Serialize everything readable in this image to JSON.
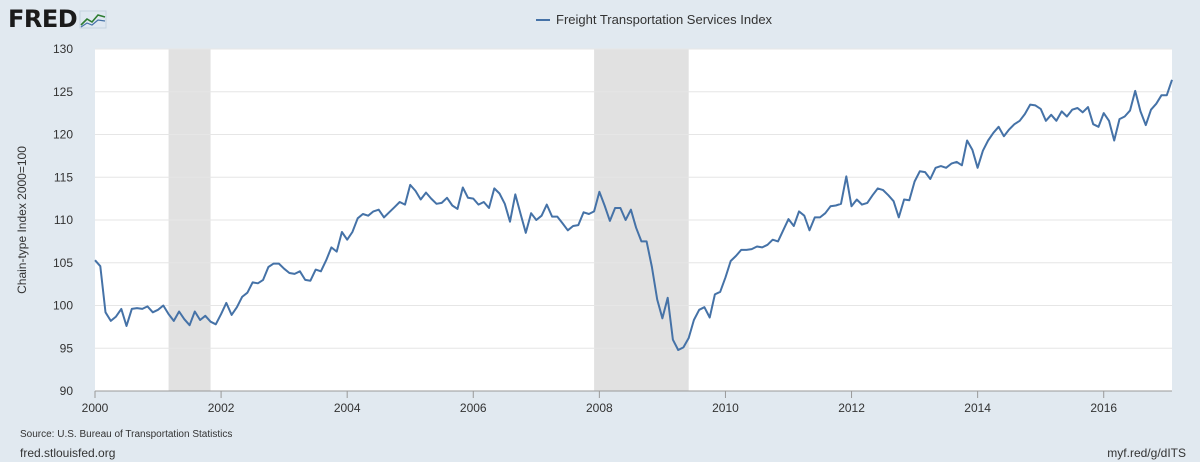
{
  "header": {
    "logo_text": "FRED",
    "logo_icon": "chart-line-icon"
  },
  "footer": {
    "source": "Source: U.S. Bureau of Transportation Statistics",
    "site": "fred.stlouisfed.org",
    "short_url": "myf.red/g/dITS"
  },
  "colors": {
    "line": "#4572a7",
    "recession": "#e1e1e1",
    "plot_bg": "#ffffff",
    "page_bg": "#e1e9f0",
    "grid": "#e6e6e6"
  },
  "chart_data": {
    "type": "line",
    "title": "",
    "ylabel": "Chain-type Index 2000=100",
    "xlabel": "",
    "ylim": [
      90,
      130
    ],
    "xlim": [
      2000.0,
      2017.083
    ],
    "yticks": [
      90,
      95,
      100,
      105,
      110,
      115,
      120,
      125,
      130
    ],
    "xticks": [
      2000,
      2002,
      2004,
      2006,
      2008,
      2010,
      2012,
      2014,
      2016
    ],
    "grid": true,
    "legend_position": "top-center",
    "recessions": [
      [
        2001.167,
        2001.833
      ],
      [
        2007.917,
        2009.417
      ]
    ],
    "series": [
      {
        "name": "Freight Transportation Services Index",
        "frequency": "monthly",
        "start": "2000-01",
        "values": [
          105.3,
          104.6,
          99.2,
          98.2,
          98.7,
          99.6,
          97.6,
          99.6,
          99.7,
          99.6,
          99.9,
          99.2,
          99.5,
          100.0,
          99.0,
          98.2,
          99.3,
          98.4,
          97.7,
          99.3,
          98.3,
          98.8,
          98.1,
          97.8,
          99.0,
          100.3,
          98.9,
          99.8,
          101.0,
          101.5,
          102.7,
          102.6,
          103.0,
          104.5,
          104.9,
          104.9,
          104.3,
          103.8,
          103.7,
          104.0,
          103.0,
          102.9,
          104.2,
          104.0,
          105.3,
          106.8,
          106.3,
          108.6,
          107.7,
          108.6,
          110.2,
          110.7,
          110.5,
          111.0,
          111.2,
          110.3,
          110.9,
          111.5,
          112.1,
          111.8,
          114.1,
          113.4,
          112.4,
          113.2,
          112.5,
          111.9,
          112.0,
          112.6,
          111.7,
          111.3,
          113.8,
          112.6,
          112.5,
          111.8,
          112.1,
          111.4,
          113.7,
          113.1,
          111.9,
          109.8,
          113.0,
          110.7,
          108.5,
          110.8,
          110.0,
          110.5,
          111.8,
          110.4,
          110.4,
          109.6,
          108.8,
          109.3,
          109.4,
          110.9,
          110.7,
          111.0,
          113.3,
          111.7,
          109.9,
          111.4,
          111.4,
          110.0,
          111.2,
          109.1,
          107.5,
          107.5,
          104.5,
          100.7,
          98.5,
          100.9,
          96.0,
          94.8,
          95.1,
          96.2,
          98.3,
          99.5,
          99.8,
          98.6,
          101.3,
          101.6,
          103.3,
          105.2,
          105.8,
          106.5,
          106.5,
          106.6,
          106.9,
          106.8,
          107.1,
          107.7,
          107.5,
          108.8,
          110.1,
          109.3,
          111.0,
          110.5,
          108.8,
          110.3,
          110.3,
          110.8,
          111.6,
          111.7,
          111.9,
          115.1,
          111.6,
          112.4,
          111.8,
          112.0,
          112.9,
          113.7,
          113.5,
          112.9,
          112.2,
          110.3,
          112.4,
          112.3,
          114.5,
          115.7,
          115.6,
          114.8,
          116.1,
          116.3,
          116.1,
          116.6,
          116.8,
          116.4,
          119.3,
          118.2,
          116.1,
          118.1,
          119.3,
          120.2,
          120.9,
          119.8,
          120.6,
          121.2,
          121.6,
          122.4,
          123.5,
          123.4,
          123.0,
          121.6,
          122.3,
          121.6,
          122.7,
          122.1,
          122.9,
          123.1,
          122.6,
          123.2,
          121.2,
          120.9,
          122.5,
          121.6,
          119.3,
          121.8,
          122.1,
          122.8,
          125.1,
          122.7,
          121.1,
          122.9,
          123.6,
          124.6,
          124.6,
          126.4
        ]
      }
    ]
  }
}
